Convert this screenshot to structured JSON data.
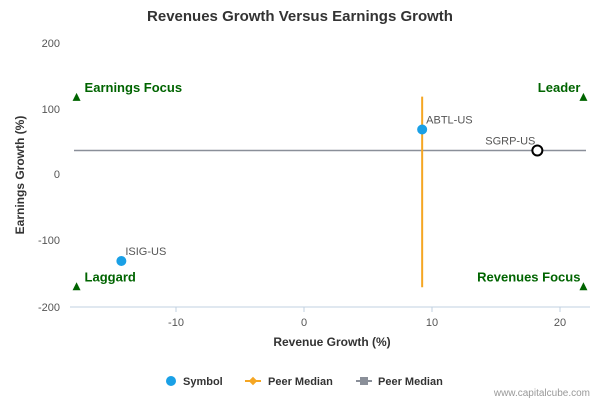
{
  "chart_data": {
    "type": "scatter",
    "title": "Revenues Growth Versus Earnings Growth",
    "xlabel": "Revenue Growth (%)",
    "ylabel": "Earnings Growth (%)",
    "xlim": [
      -18,
      22
    ],
    "ylim": [
      -200,
      200
    ],
    "xticks": [
      -10,
      0,
      10,
      20
    ],
    "yticks": [
      200,
      100,
      0,
      -100,
      -200
    ],
    "points": [
      {
        "label": "ABTL-US",
        "x": 9.2,
        "y": 70,
        "style": "filled",
        "color": "#1aa0e6"
      },
      {
        "label": "SGRP-US",
        "x": 18.2,
        "y": 38,
        "style": "open",
        "color": "#000000"
      },
      {
        "label": "ISIG-US",
        "x": -14.3,
        "y": -130,
        "style": "filled",
        "color": "#1aa0e6"
      }
    ],
    "peer_median_x": 9.2,
    "peer_median_y": 38,
    "peer_median_x_range": [
      -170,
      120
    ],
    "quadrants": [
      {
        "label": "Earnings Focus",
        "corner": "top-left",
        "x": -17.8,
        "y": 118
      },
      {
        "label": "Leader",
        "corner": "top-right",
        "x": 21.8,
        "y": 118
      },
      {
        "label": "Laggard",
        "corner": "bottom-left",
        "x": -17.8,
        "y": -170
      },
      {
        "label": "Revenues Focus",
        "corner": "bottom-right",
        "x": 21.8,
        "y": -170
      }
    ],
    "legend": [
      {
        "label": "Symbol",
        "color": "#1aa0e6",
        "marker": "circle"
      },
      {
        "label": "Peer Median",
        "color": "#f5a623",
        "marker": "diamond-line"
      },
      {
        "label": "Peer Median",
        "color": "#8a8f99",
        "marker": "square-line"
      }
    ],
    "legend_position": "bottom-center",
    "grid": false,
    "colors": {
      "vertical_median": "#f5a623",
      "horizontal_median": "#8a8f99",
      "quadrant": "#006400"
    },
    "credit": "www.capitalcube.com"
  }
}
